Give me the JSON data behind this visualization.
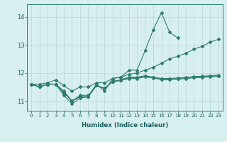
{
  "x": [
    0,
    1,
    2,
    3,
    4,
    5,
    6,
    7,
    8,
    9,
    10,
    11,
    12,
    13,
    14,
    15,
    16,
    17,
    18,
    19,
    20,
    21,
    22,
    23
  ],
  "line_jagged": [
    11.6,
    11.5,
    11.6,
    11.6,
    11.2,
    10.9,
    11.1,
    11.15,
    11.6,
    11.35,
    11.8,
    11.85,
    12.1,
    12.1,
    12.8,
    13.55,
    14.15,
    13.45,
    13.25,
    null,
    null,
    null,
    null,
    null
  ],
  "line_diagonal": [
    11.6,
    11.6,
    11.65,
    11.75,
    11.55,
    11.35,
    11.5,
    11.5,
    11.65,
    11.65,
    11.8,
    11.85,
    11.95,
    12.0,
    12.1,
    12.2,
    12.35,
    12.5,
    12.6,
    12.7,
    12.85,
    12.95,
    13.1,
    13.2
  ],
  "line_mid1": [
    11.6,
    11.5,
    11.6,
    11.6,
    11.35,
    11.0,
    11.2,
    11.2,
    11.55,
    11.45,
    11.7,
    11.75,
    11.85,
    11.85,
    11.9,
    11.85,
    11.8,
    11.8,
    11.82,
    11.84,
    11.87,
    11.88,
    11.9,
    11.92
  ],
  "line_mid2": [
    11.6,
    11.5,
    11.6,
    11.6,
    11.3,
    11.0,
    11.15,
    11.15,
    11.55,
    11.45,
    11.7,
    11.75,
    11.82,
    11.82,
    11.88,
    11.83,
    11.78,
    11.78,
    11.8,
    11.82,
    11.85,
    11.86,
    11.88,
    11.9
  ],
  "line_low": [
    11.6,
    11.5,
    11.6,
    11.6,
    11.3,
    11.0,
    11.15,
    11.15,
    11.55,
    11.45,
    11.68,
    11.73,
    11.8,
    11.8,
    11.86,
    11.82,
    11.76,
    11.76,
    11.78,
    11.8,
    11.83,
    11.84,
    11.86,
    11.88
  ],
  "color": "#2e7d6e",
  "bg_color": "#d8eff0",
  "grid_color": "#b8d8da",
  "xlabel": "Humidex (Indice chaleur)",
  "ylim": [
    10.65,
    14.45
  ],
  "yticks": [
    11,
    12,
    13,
    14
  ],
  "xticks": [
    0,
    1,
    2,
    3,
    4,
    5,
    6,
    7,
    8,
    9,
    10,
    11,
    12,
    13,
    14,
    15,
    16,
    17,
    18,
    19,
    20,
    21,
    22,
    23
  ]
}
